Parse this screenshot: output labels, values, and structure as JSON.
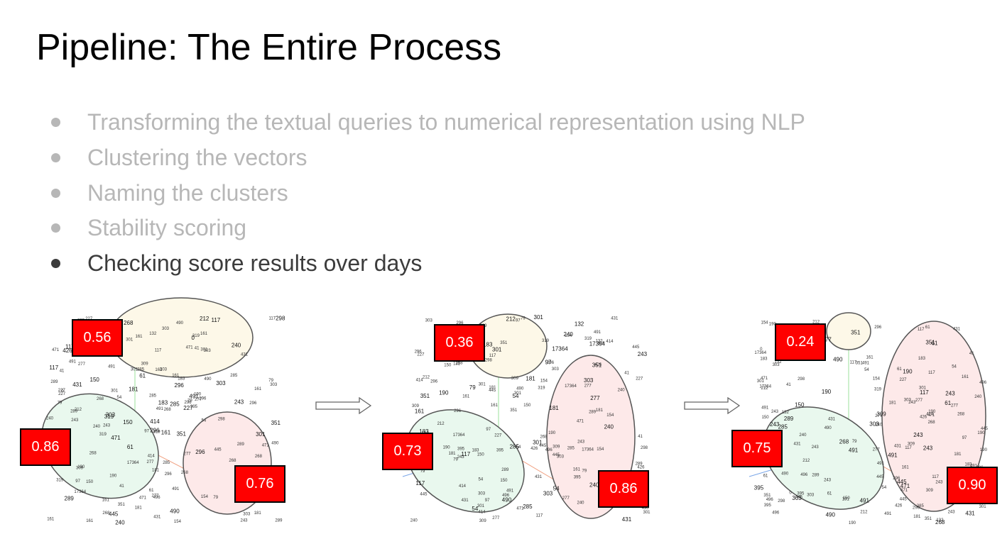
{
  "slide": {
    "title": "Pipeline: The Entire Process",
    "bullets": [
      {
        "text": "Transforming the textual queries to numerical representation using NLP",
        "active": false
      },
      {
        "text": "Clustering the vectors",
        "active": false
      },
      {
        "text": "Naming the clusters",
        "active": false
      },
      {
        "text": "Stability scoring",
        "active": false
      },
      {
        "text": "Checking score results over days",
        "active": true
      }
    ]
  },
  "colors": {
    "score_badge": "#ff0000",
    "cluster_yellow": "#fdf8e8",
    "cluster_green": "#e9f8ee",
    "cluster_pink": "#fde9e9",
    "inactive_text": "#b7b7b7",
    "active_text": "#3c3c3c"
  },
  "days": [
    {
      "scores": {
        "yellow": "0.56",
        "green": "0.86",
        "pink": "0.76"
      }
    },
    {
      "scores": {
        "yellow": "0.36",
        "green": "0.73",
        "pink": "0.86"
      }
    },
    {
      "scores": {
        "yellow": "0.24",
        "green": "0.75",
        "pink": "0.90"
      }
    }
  ],
  "point_labels": [
    "240",
    "309",
    "289",
    "277",
    "319",
    "491",
    "301",
    "212",
    "243",
    "161",
    "97",
    "0",
    "117",
    "490",
    "445",
    "351",
    "431",
    "61",
    "496",
    "303",
    "41",
    "132",
    "426",
    "150",
    "298",
    "79",
    "54",
    "471",
    "268",
    "183",
    "296",
    "17364",
    "154",
    "395",
    "414",
    "285",
    "181",
    "190",
    "227"
  ]
}
